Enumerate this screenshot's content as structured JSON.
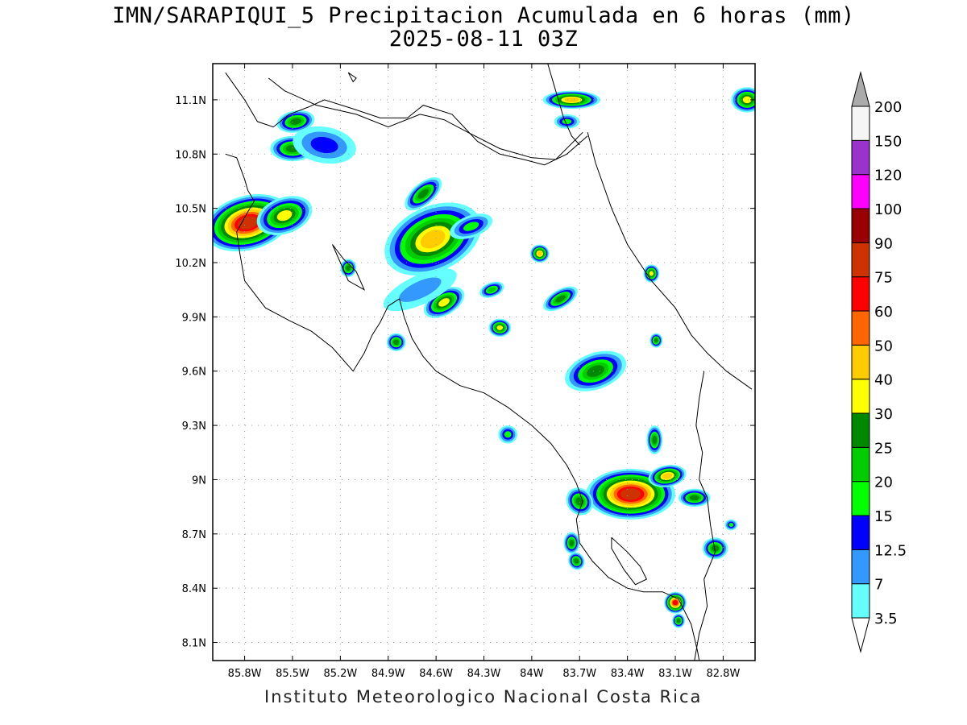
{
  "title": {
    "line1": "IMN/SARAPIQUI_5 Precipitacion Acumulada en 6 horas (mm)",
    "line2": "2025-08-11 03Z"
  },
  "footer": "Instituto Meteorologico Nacional Costa Rica",
  "map": {
    "lon_min": -86.0,
    "lon_max": -82.6,
    "lat_min": 8.0,
    "lat_max": 11.3,
    "lat_ticks": [
      {
        "v": 11.1,
        "label": "11.1N"
      },
      {
        "v": 10.8,
        "label": "10.8N"
      },
      {
        "v": 10.5,
        "label": "10.5N"
      },
      {
        "v": 10.2,
        "label": "10.2N"
      },
      {
        "v": 9.9,
        "label": "9.9N"
      },
      {
        "v": 9.6,
        "label": "9.6N"
      },
      {
        "v": 9.3,
        "label": "9.3N"
      },
      {
        "v": 9.0,
        "label": "9N"
      },
      {
        "v": 8.7,
        "label": "8.7N"
      },
      {
        "v": 8.4,
        "label": "8.4N"
      },
      {
        "v": 8.1,
        "label": "8.1N"
      }
    ],
    "lon_ticks": [
      {
        "v": -85.8,
        "label": "85.8W"
      },
      {
        "v": -85.5,
        "label": "85.5W"
      },
      {
        "v": -85.2,
        "label": "85.2W"
      },
      {
        "v": -84.9,
        "label": "84.9W"
      },
      {
        "v": -84.6,
        "label": "84.6W"
      },
      {
        "v": -84.3,
        "label": "84.3W"
      },
      {
        "v": -84.0,
        "label": "84W"
      },
      {
        "v": -83.7,
        "label": "83.7W"
      },
      {
        "v": -83.4,
        "label": "83.4W"
      },
      {
        "v": -83.1,
        "label": "83.1W"
      },
      {
        "v": -82.8,
        "label": "82.8W"
      }
    ],
    "coastlines": [
      [
        [
          -85.92,
          11.25
        ],
        [
          -85.8,
          11.1
        ],
        [
          -85.72,
          10.98
        ],
        [
          -85.62,
          10.95
        ],
        [
          -85.52,
          11.02
        ],
        [
          -85.4,
          11.06
        ],
        [
          -85.3,
          11.1
        ],
        [
          -85.12,
          11.05
        ],
        [
          -84.95,
          11.0
        ],
        [
          -84.78,
          11.0
        ],
        [
          -84.68,
          11.07
        ],
        [
          -84.5,
          11.02
        ],
        [
          -84.34,
          10.87
        ],
        [
          -84.2,
          10.8
        ],
        [
          -84.05,
          10.77
        ],
        [
          -83.92,
          10.74
        ],
        [
          -83.78,
          10.8
        ],
        [
          -83.65,
          10.9
        ]
      ],
      [
        [
          -85.92,
          10.8
        ],
        [
          -85.85,
          10.78
        ],
        [
          -85.8,
          10.66
        ],
        [
          -85.78,
          10.6
        ],
        [
          -85.74,
          10.54
        ],
        [
          -85.78,
          10.48
        ],
        [
          -85.85,
          10.37
        ],
        [
          -85.83,
          10.25
        ],
        [
          -85.8,
          10.1
        ],
        [
          -85.67,
          9.95
        ],
        [
          -85.52,
          9.88
        ],
        [
          -85.38,
          9.82
        ],
        [
          -85.25,
          9.73
        ],
        [
          -85.12,
          9.6
        ],
        [
          -85.05,
          9.7
        ],
        [
          -85.0,
          9.8
        ],
        [
          -84.95,
          9.87
        ],
        [
          -84.9,
          9.96
        ],
        [
          -84.83,
          10.0
        ]
      ],
      [
        [
          -84.83,
          10.0
        ],
        [
          -84.8,
          9.9
        ],
        [
          -84.75,
          9.78
        ],
        [
          -84.68,
          9.68
        ],
        [
          -84.6,
          9.6
        ],
        [
          -84.45,
          9.52
        ],
        [
          -84.3,
          9.48
        ],
        [
          -84.15,
          9.4
        ],
        [
          -84.0,
          9.3
        ],
        [
          -83.88,
          9.2
        ],
        [
          -83.78,
          9.08
        ],
        [
          -83.72,
          8.98
        ],
        [
          -83.68,
          8.88
        ],
        [
          -83.72,
          8.78
        ],
        [
          -83.7,
          8.65
        ],
        [
          -83.62,
          8.55
        ],
        [
          -83.52,
          8.46
        ],
        [
          -83.4,
          8.4
        ],
        [
          -83.3,
          8.38
        ],
        [
          -83.18,
          8.38
        ],
        [
          -83.08,
          8.34
        ],
        [
          -83.0,
          8.2
        ],
        [
          -82.96,
          8.05
        ],
        [
          -82.95,
          8.0
        ]
      ],
      [
        [
          -83.65,
          10.92
        ],
        [
          -83.6,
          10.75
        ],
        [
          -83.5,
          10.5
        ],
        [
          -83.4,
          10.3
        ],
        [
          -83.25,
          10.1
        ],
        [
          -83.1,
          9.95
        ],
        [
          -83.0,
          9.8
        ],
        [
          -82.9,
          9.7
        ],
        [
          -82.78,
          9.6
        ],
        [
          -82.62,
          9.5
        ]
      ],
      [
        [
          -83.9,
          11.3
        ],
        [
          -83.85,
          11.15
        ],
        [
          -83.8,
          11.0
        ],
        [
          -83.75,
          10.9
        ],
        [
          -83.7,
          10.85
        ]
      ]
    ],
    "borders": [
      [
        [
          -85.65,
          11.22
        ],
        [
          -85.55,
          11.15
        ],
        [
          -85.35,
          11.07
        ],
        [
          -85.1,
          11.02
        ],
        [
          -84.9,
          10.95
        ],
        [
          -84.7,
          11.02
        ],
        [
          -84.55,
          10.99
        ],
        [
          -84.4,
          10.92
        ],
        [
          -84.2,
          10.83
        ],
        [
          -84.0,
          10.78
        ],
        [
          -83.85,
          10.77
        ],
        [
          -83.68,
          10.92
        ]
      ],
      [
        [
          -82.92,
          9.6
        ],
        [
          -82.95,
          9.45
        ],
        [
          -82.97,
          9.3
        ],
        [
          -82.93,
          9.15
        ],
        [
          -82.95,
          9.0
        ],
        [
          -82.9,
          8.9
        ],
        [
          -82.88,
          8.75
        ],
        [
          -82.85,
          8.6
        ],
        [
          -82.92,
          8.45
        ],
        [
          -82.9,
          8.3
        ],
        [
          -82.95,
          8.15
        ],
        [
          -82.98,
          8.0
        ]
      ]
    ],
    "islands": [
      [
        [
          -83.5,
          8.68
        ],
        [
          -83.4,
          8.6
        ],
        [
          -83.32,
          8.52
        ],
        [
          -83.28,
          8.45
        ],
        [
          -83.35,
          8.42
        ],
        [
          -83.42,
          8.5
        ],
        [
          -83.5,
          8.62
        ],
        [
          -83.5,
          8.68
        ]
      ],
      [
        [
          -85.25,
          10.3
        ],
        [
          -85.18,
          10.22
        ],
        [
          -85.1,
          10.15
        ],
        [
          -85.05,
          10.05
        ],
        [
          -85.15,
          10.1
        ],
        [
          -85.2,
          10.2
        ],
        [
          -85.25,
          10.3
        ]
      ],
      [
        [
          -85.15,
          11.25
        ],
        [
          -85.12,
          11.2
        ],
        [
          -85.1,
          11.22
        ],
        [
          -85.15,
          11.25
        ]
      ]
    ]
  },
  "precip_cells": [
    {
      "lon": -85.78,
      "lat": 10.42,
      "rx": 0.28,
      "ry": 0.15,
      "rot": -15,
      "max": 75
    },
    {
      "lon": -85.55,
      "lat": 10.46,
      "rx": 0.18,
      "ry": 0.1,
      "rot": -20,
      "max": 30
    },
    {
      "lon": -85.48,
      "lat": 10.98,
      "rx": 0.12,
      "ry": 0.06,
      "rot": -10,
      "max": 25
    },
    {
      "lon": -85.5,
      "lat": 10.83,
      "rx": 0.14,
      "ry": 0.07,
      "rot": 0,
      "max": 25
    },
    {
      "lon": -85.3,
      "lat": 10.85,
      "rx": 0.2,
      "ry": 0.1,
      "rot": 10,
      "max": 12.5
    },
    {
      "lon": -84.62,
      "lat": 10.33,
      "rx": 0.32,
      "ry": 0.18,
      "rot": -25,
      "max": 40
    },
    {
      "lon": -84.68,
      "lat": 10.58,
      "rx": 0.14,
      "ry": 0.06,
      "rot": -40,
      "max": 25
    },
    {
      "lon": -84.38,
      "lat": 10.4,
      "rx": 0.14,
      "ry": 0.06,
      "rot": -20,
      "max": 15
    },
    {
      "lon": -84.55,
      "lat": 9.98,
      "rx": 0.14,
      "ry": 0.07,
      "rot": -30,
      "max": 30
    },
    {
      "lon": -84.7,
      "lat": 10.05,
      "rx": 0.25,
      "ry": 0.08,
      "rot": -25,
      "max": 7
    },
    {
      "lon": -84.2,
      "lat": 9.84,
      "rx": 0.07,
      "ry": 0.05,
      "rot": 0,
      "max": 30
    },
    {
      "lon": -84.25,
      "lat": 10.05,
      "rx": 0.08,
      "ry": 0.04,
      "rot": -20,
      "max": 20
    },
    {
      "lon": -83.95,
      "lat": 10.25,
      "rx": 0.06,
      "ry": 0.05,
      "rot": 0,
      "max": 40
    },
    {
      "lon": -83.82,
      "lat": 10.0,
      "rx": 0.12,
      "ry": 0.05,
      "rot": -30,
      "max": 25
    },
    {
      "lon": -85.15,
      "lat": 10.17,
      "rx": 0.05,
      "ry": 0.05,
      "rot": 0,
      "max": 25
    },
    {
      "lon": -84.85,
      "lat": 9.76,
      "rx": 0.06,
      "ry": 0.05,
      "rot": 0,
      "max": 25
    },
    {
      "lon": -83.75,
      "lat": 11.1,
      "rx": 0.18,
      "ry": 0.05,
      "rot": 0,
      "max": 40
    },
    {
      "lon": -83.78,
      "lat": 10.98,
      "rx": 0.08,
      "ry": 0.04,
      "rot": 0,
      "max": 15
    },
    {
      "lon": -82.65,
      "lat": 11.1,
      "rx": 0.1,
      "ry": 0.07,
      "rot": 0,
      "max": 30
    },
    {
      "lon": -83.25,
      "lat": 10.14,
      "rx": 0.05,
      "ry": 0.05,
      "rot": 0,
      "max": 30
    },
    {
      "lon": -83.22,
      "lat": 9.77,
      "rx": 0.04,
      "ry": 0.04,
      "rot": 0,
      "max": 25
    },
    {
      "lon": -83.6,
      "lat": 9.6,
      "rx": 0.2,
      "ry": 0.1,
      "rot": -20,
      "max": 25
    },
    {
      "lon": -83.38,
      "lat": 8.92,
      "rx": 0.28,
      "ry": 0.14,
      "rot": 0,
      "max": 75
    },
    {
      "lon": -83.15,
      "lat": 9.02,
      "rx": 0.12,
      "ry": 0.06,
      "rot": -10,
      "max": 40
    },
    {
      "lon": -83.7,
      "lat": 8.88,
      "rx": 0.08,
      "ry": 0.08,
      "rot": -40,
      "max": 25
    },
    {
      "lon": -82.98,
      "lat": 8.9,
      "rx": 0.1,
      "ry": 0.05,
      "rot": 0,
      "max": 25
    },
    {
      "lon": -83.23,
      "lat": 9.22,
      "rx": 0.05,
      "ry": 0.08,
      "rot": 0,
      "max": 25
    },
    {
      "lon": -83.75,
      "lat": 8.65,
      "rx": 0.05,
      "ry": 0.06,
      "rot": 0,
      "max": 25
    },
    {
      "lon": -83.72,
      "lat": 8.55,
      "rx": 0.05,
      "ry": 0.05,
      "rot": -30,
      "max": 25
    },
    {
      "lon": -82.85,
      "lat": 8.62,
      "rx": 0.08,
      "ry": 0.06,
      "rot": 0,
      "max": 25
    },
    {
      "lon": -83.1,
      "lat": 8.32,
      "rx": 0.07,
      "ry": 0.06,
      "rot": 0,
      "max": 60
    },
    {
      "lon": -83.08,
      "lat": 8.22,
      "rx": 0.04,
      "ry": 0.04,
      "rot": 0,
      "max": 25
    },
    {
      "lon": -84.15,
      "lat": 9.25,
      "rx": 0.06,
      "ry": 0.05,
      "rot": 0,
      "max": 15
    },
    {
      "lon": -82.75,
      "lat": 8.75,
      "rx": 0.04,
      "ry": 0.03,
      "rot": 0,
      "max": 15
    }
  ],
  "colorbar": {
    "colors": [
      "#ffffff",
      "#66ffff",
      "#3399ff",
      "#0000ff",
      "#00ff00",
      "#00cc00",
      "#008800",
      "#ffff00",
      "#ffcc00",
      "#ff6600",
      "#ff0000",
      "#cc3300",
      "#990000",
      "#ff00ff",
      "#9933cc",
      "#f5f5f5",
      "#aaaaaa"
    ],
    "labels": [
      "200",
      "150",
      "120",
      "100",
      "90",
      "75",
      "60",
      "50",
      "40",
      "30",
      "25",
      "20",
      "15",
      "12.5",
      "7",
      "3.5"
    ],
    "thresholds": [
      3.5,
      7,
      12.5,
      15,
      20,
      25,
      30,
      40,
      50,
      60,
      75,
      90,
      100,
      120,
      150,
      200
    ]
  }
}
